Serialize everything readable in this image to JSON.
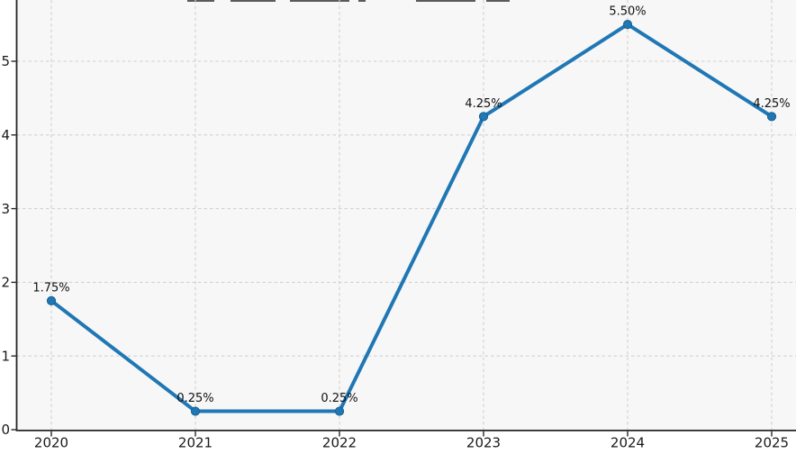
{
  "chart": {
    "title": "",
    "title_clipped": true
  },
  "chart_data": {
    "type": "line",
    "categories": [
      "2020",
      "2021",
      "2022",
      "2023",
      "2024",
      "2025"
    ],
    "values": [
      1.75,
      0.25,
      0.25,
      4.25,
      5.5,
      4.25
    ],
    "point_labels": [
      "1.75%",
      "0.25%",
      "0.25%",
      "4.25%",
      "5.50%",
      "4.25%"
    ],
    "title": "",
    "xlabel": "",
    "ylabel": "",
    "yticks": [
      0,
      1,
      2,
      3,
      4,
      5
    ],
    "ytick_labels": [
      "0",
      "1",
      "2",
      "3",
      "4",
      "5"
    ],
    "ylim": [
      0,
      5.83
    ],
    "legend": "none",
    "grid": "dashed-both-axes",
    "marker": "circle",
    "colors": {
      "line": "#1f77b4",
      "marker_fill": "#1f77b4",
      "marker_edge": "#17618f",
      "plot_background": "#f7f7f8",
      "figure_background": "#ffffff",
      "gridline": "#d2d2d2",
      "axis": "#262626",
      "tick_label": "#1a1a1a",
      "data_label": "#111111"
    }
  }
}
